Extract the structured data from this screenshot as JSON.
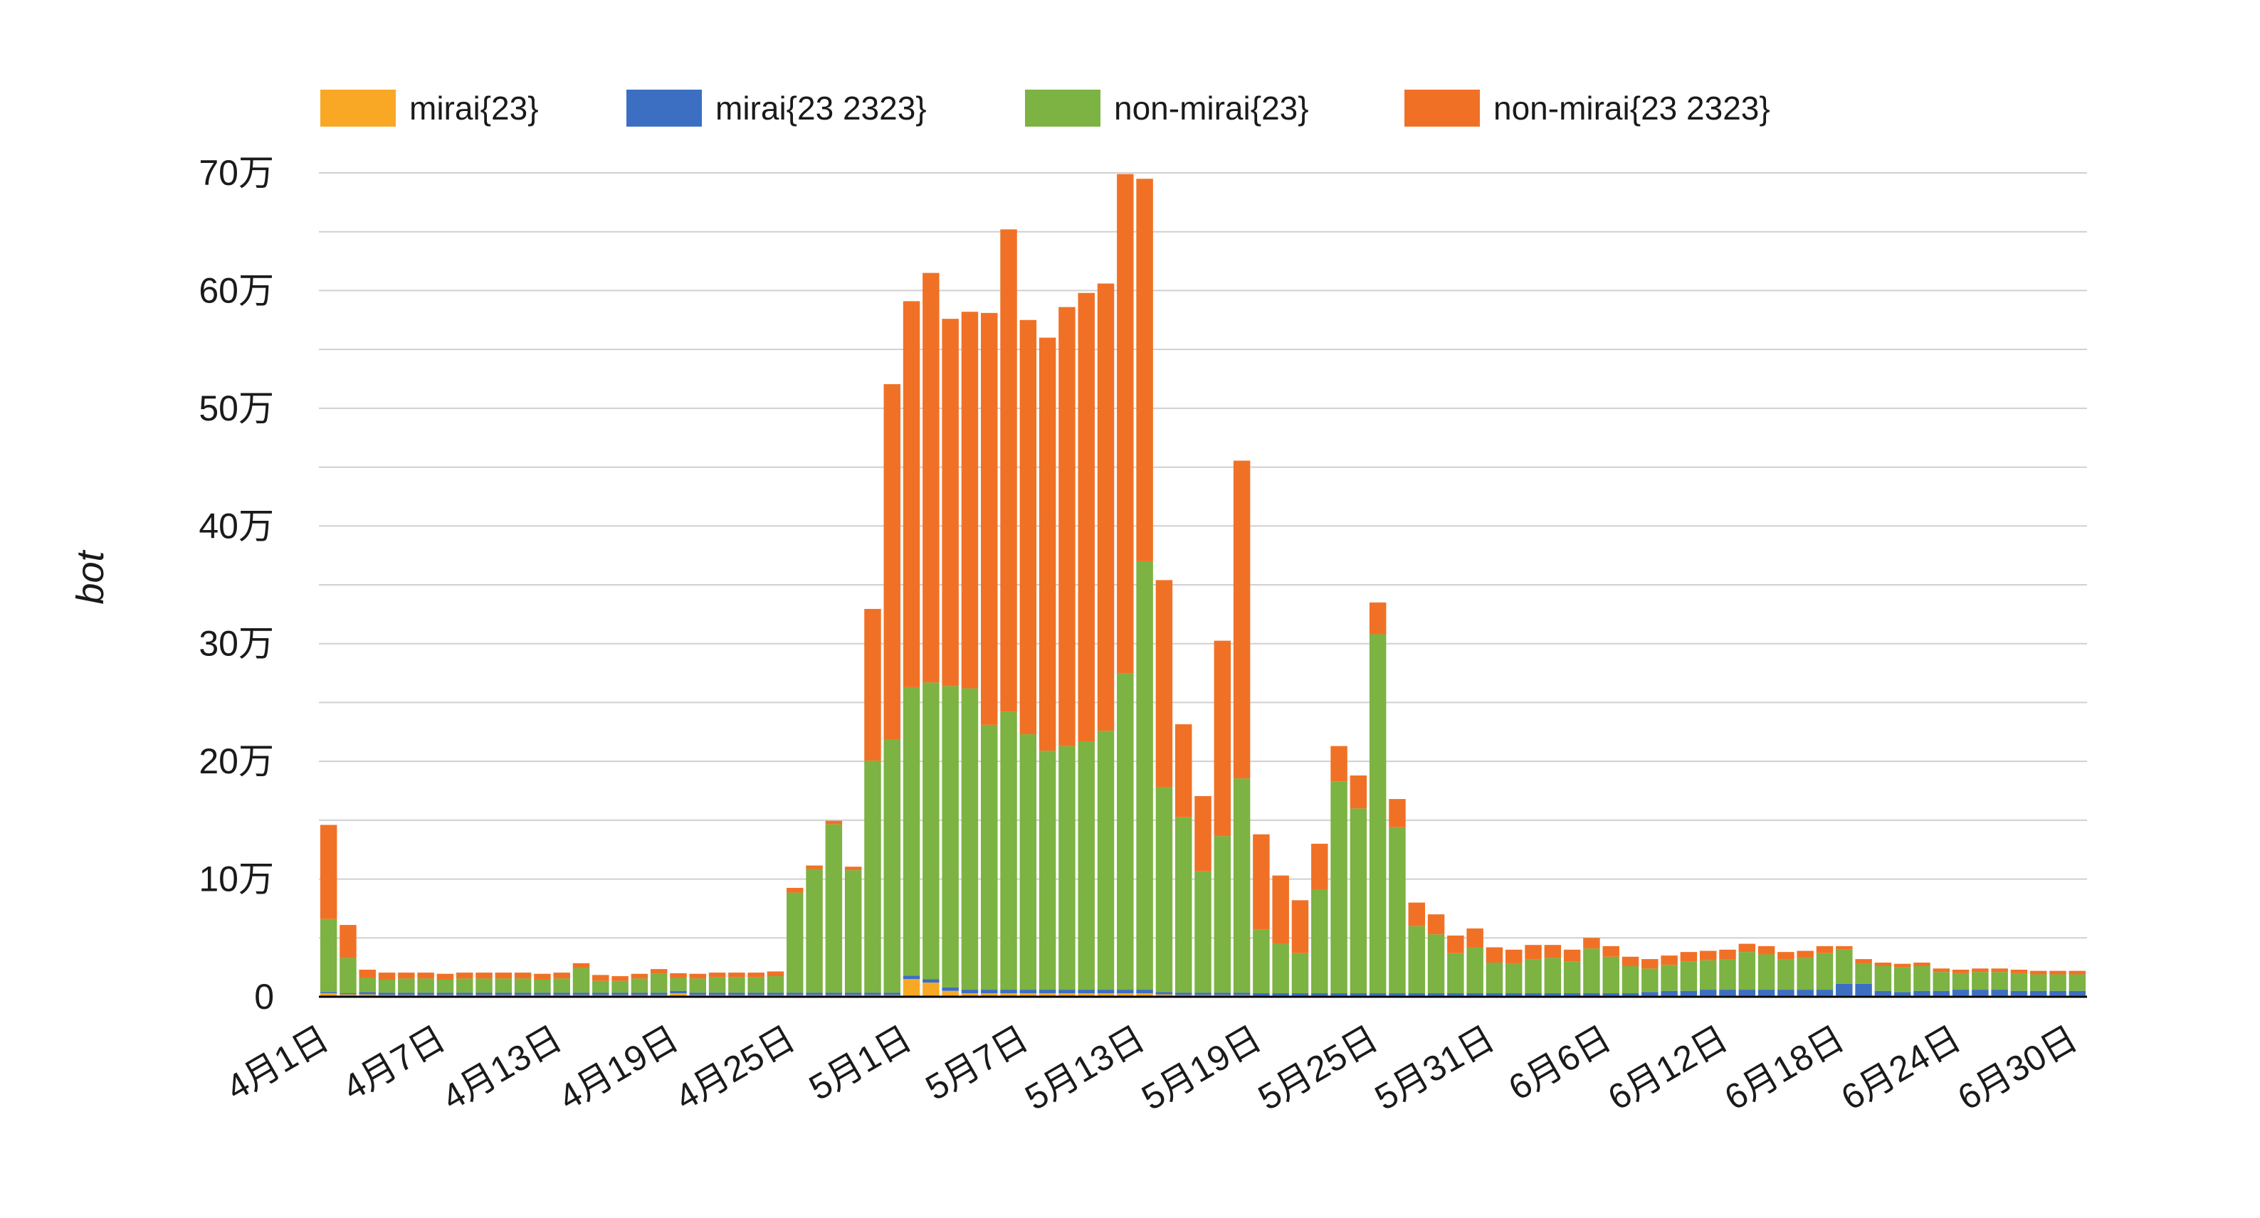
{
  "chart_data": {
    "type": "bar",
    "stacked": true,
    "ylabel": "bot",
    "xlabel": "",
    "title": "",
    "ylim": [
      0,
      700000
    ],
    "yticks": [
      0,
      100000,
      200000,
      300000,
      400000,
      500000,
      600000,
      700000
    ],
    "ytick_labels": [
      "0",
      "10万",
      "20万",
      "30万",
      "40万",
      "50万",
      "60万",
      "70万"
    ],
    "xtick_labels": [
      "4月1日",
      "4月7日",
      "4月13日",
      "4月19日",
      "4月25日",
      "5月1日",
      "5月7日",
      "5月13日",
      "5月19日",
      "5月25日",
      "5月31日",
      "6月6日",
      "6月12日",
      "6月18日",
      "6月24日",
      "6月30日"
    ],
    "xtick_indices": [
      0,
      6,
      12,
      18,
      24,
      30,
      36,
      42,
      48,
      54,
      60,
      66,
      72,
      78,
      84,
      90
    ],
    "grid": true,
    "legend_position": "top",
    "categories": [
      "4月1日",
      "4月2日",
      "4月3日",
      "4月4日",
      "4月5日",
      "4月6日",
      "4月7日",
      "4月8日",
      "4月9日",
      "4月10日",
      "4月11日",
      "4月12日",
      "4月13日",
      "4月14日",
      "4月15日",
      "4月16日",
      "4月17日",
      "4月18日",
      "4月19日",
      "4月20日",
      "4月21日",
      "4月22日",
      "4月23日",
      "4月24日",
      "4月25日",
      "4月26日",
      "4月27日",
      "4月28日",
      "4月29日",
      "4月30日",
      "5月1日",
      "5月2日",
      "5月3日",
      "5月4日",
      "5月5日",
      "5月6日",
      "5月7日",
      "5月8日",
      "5月9日",
      "5月10日",
      "5月11日",
      "5月12日",
      "5月13日",
      "5月14日",
      "5月15日",
      "5月16日",
      "5月17日",
      "5月18日",
      "5月19日",
      "5月20日",
      "5月21日",
      "5月22日",
      "5月23日",
      "5月24日",
      "5月25日",
      "5月26日",
      "5月27日",
      "5月28日",
      "5月29日",
      "5月30日",
      "5月31日",
      "6月1日",
      "6月2日",
      "6月3日",
      "6月4日",
      "6月5日",
      "6月6日",
      "6月7日",
      "6月8日",
      "6月9日",
      "6月10日",
      "6月11日",
      "6月12日",
      "6月13日",
      "6月14日",
      "6月15日",
      "6月16日",
      "6月17日",
      "6月18日",
      "6月19日",
      "6月20日",
      "6月21日",
      "6月22日",
      "6月23日",
      "6月24日",
      "6月25日",
      "6月26日",
      "6月27日",
      "6月28日",
      "6月29日",
      "6月30日"
    ],
    "series": [
      {
        "name": "mirai{23}",
        "color": "#F9A825",
        "values": [
          3000,
          2000,
          2000,
          1500,
          1500,
          1500,
          1500,
          1500,
          1500,
          1500,
          1500,
          1500,
          1500,
          1500,
          1500,
          1500,
          1500,
          1500,
          3000,
          1500,
          1500,
          1500,
          1500,
          1500,
          1500,
          1500,
          1500,
          1500,
          1500,
          1500,
          15000,
          12000,
          5000,
          3000,
          3000,
          3000,
          3000,
          3000,
          3000,
          3000,
          3000,
          3000,
          3000,
          2000,
          1500,
          1500,
          1500,
          1500,
          1000,
          1000,
          1000,
          1000,
          1000,
          1000,
          1000,
          1000,
          1000,
          1000,
          1000,
          1000,
          1000,
          1000,
          1000,
          1000,
          1000,
          1000,
          1000,
          1000,
          1000,
          1000,
          1000,
          1000,
          1000,
          1000,
          1000,
          1000,
          1000,
          1000,
          1000,
          1000,
          1000,
          1000,
          1000,
          1000,
          1000,
          1000,
          1000,
          1000,
          1000,
          1000,
          1000
        ]
      },
      {
        "name": "mirai{23 2323}",
        "color": "#3C6FC2",
        "values": [
          1000,
          1000,
          2000,
          2000,
          2000,
          2000,
          2000,
          2000,
          2000,
          2000,
          2000,
          2000,
          2000,
          2000,
          2000,
          2000,
          2000,
          2000,
          2000,
          2000,
          2000,
          2000,
          2000,
          2000,
          2000,
          2000,
          2000,
          2000,
          2000,
          2000,
          3000,
          3000,
          3000,
          3000,
          3000,
          3000,
          3000,
          3000,
          3000,
          3000,
          3000,
          3000,
          3000,
          2000,
          2000,
          2000,
          2000,
          2000,
          2000,
          2000,
          2000,
          2000,
          2000,
          2000,
          2000,
          2000,
          2000,
          2000,
          2000,
          2000,
          2000,
          2000,
          2000,
          2000,
          2000,
          2000,
          2000,
          2000,
          3000,
          4000,
          4000,
          5000,
          5000,
          5000,
          5000,
          5000,
          5000,
          5000,
          10000,
          10000,
          4000,
          3000,
          4000,
          4000,
          5000,
          5000,
          5000,
          4000,
          4000,
          4000,
          4000
        ]
      },
      {
        "name": "non-mirai{23}",
        "color": "#7CB342",
        "values": [
          62000,
          30000,
          12000,
          11000,
          12000,
          12000,
          11000,
          12000,
          12000,
          12000,
          12000,
          11000,
          12000,
          21000,
          10000,
          10000,
          12000,
          16000,
          11000,
          12000,
          13000,
          13000,
          13000,
          14000,
          85000,
          105000,
          143000,
          104000,
          197000,
          215000,
          245000,
          252000,
          256000,
          256000,
          225000,
          236000,
          217000,
          203000,
          207000,
          211000,
          220000,
          269000,
          364000,
          174000,
          149000,
          103000,
          133000,
          182000,
          54000,
          42000,
          34000,
          88000,
          180000,
          157000,
          305000,
          141000,
          57000,
          50000,
          34000,
          39000,
          26000,
          25000,
          29000,
          30000,
          27000,
          38000,
          31000,
          23000,
          20000,
          22000,
          25000,
          25000,
          26000,
          32000,
          30000,
          26000,
          27000,
          31000,
          29000,
          17000,
          21000,
          21000,
          21000,
          16000,
          14000,
          15000,
          15000,
          15000,
          14000,
          14000,
          14000
        ]
      },
      {
        "name": "non-mirai{23 2323}",
        "color": "#F07126",
        "values": [
          80000,
          28000,
          7000,
          6000,
          5000,
          5000,
          5000,
          5000,
          5000,
          5000,
          5000,
          5000,
          5000,
          4000,
          5000,
          4000,
          4000,
          4000,
          4000,
          4000,
          4000,
          4000,
          4000,
          4000,
          4000,
          3000,
          3000,
          3000,
          129000,
          302000,
          328000,
          348000,
          312000,
          320000,
          350000,
          410000,
          352000,
          351000,
          373000,
          381000,
          380000,
          424000,
          325000,
          176000,
          79000,
          64000,
          166000,
          270000,
          81000,
          58000,
          45000,
          39000,
          30000,
          28000,
          27000,
          24000,
          20000,
          17000,
          15000,
          16000,
          13000,
          12000,
          12000,
          11000,
          10000,
          9000,
          9000,
          8000,
          8000,
          8000,
          8000,
          8000,
          8000,
          7000,
          7000,
          6000,
          6000,
          6000,
          3000,
          4000,
          3000,
          3000,
          3000,
          3000,
          3000,
          3000,
          3000,
          3000,
          3000,
          3000,
          3000
        ]
      }
    ]
  }
}
